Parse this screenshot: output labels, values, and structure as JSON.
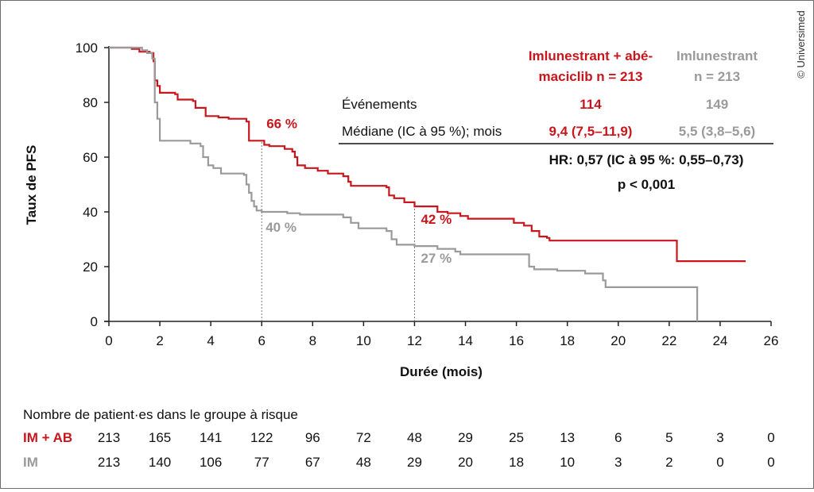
{
  "copyright": "© Universimed",
  "colors": {
    "red": "#c8161d",
    "gray": "#9a9a9a",
    "axis": "#222222"
  },
  "chart_data": {
    "type": "line",
    "subtype": "kaplan-meier step",
    "xlabel": "Durée (mois)",
    "ylabel": "Taux de PFS",
    "xlim": [
      0,
      26
    ],
    "ylim": [
      0,
      100
    ],
    "x_ticks": [
      0,
      2,
      4,
      6,
      8,
      10,
      12,
      14,
      16,
      18,
      20,
      22,
      24,
      26
    ],
    "y_ticks": [
      0,
      20,
      40,
      60,
      80,
      100
    ],
    "grid": false,
    "series": [
      {
        "key": "combo",
        "color": "#c8161d",
        "points": [
          [
            0,
            100
          ],
          [
            0.9,
            99.5
          ],
          [
            1.2,
            98.5
          ],
          [
            1.6,
            98
          ],
          [
            1.75,
            95
          ],
          [
            1.8,
            88
          ],
          [
            1.9,
            86
          ],
          [
            2.0,
            83.5
          ],
          [
            2.6,
            83
          ],
          [
            2.7,
            81
          ],
          [
            3.3,
            80.5
          ],
          [
            3.4,
            78
          ],
          [
            3.8,
            75
          ],
          [
            4.3,
            74.5
          ],
          [
            4.7,
            74
          ],
          [
            5.4,
            73
          ],
          [
            5.5,
            66
          ],
          [
            6.0,
            66
          ],
          [
            6.1,
            64.5
          ],
          [
            6.3,
            64
          ],
          [
            6.9,
            63
          ],
          [
            7.2,
            62
          ],
          [
            7.3,
            60
          ],
          [
            7.4,
            57
          ],
          [
            7.7,
            56
          ],
          [
            8.0,
            56
          ],
          [
            8.2,
            55
          ],
          [
            8.6,
            54
          ],
          [
            9.2,
            53
          ],
          [
            9.4,
            51
          ],
          [
            9.5,
            49.5
          ],
          [
            10.5,
            49.5
          ],
          [
            10.9,
            49
          ],
          [
            11.0,
            46
          ],
          [
            11.2,
            45
          ],
          [
            11.6,
            43.5
          ],
          [
            12.0,
            42
          ],
          [
            12.9,
            40
          ],
          [
            13.3,
            39.5
          ],
          [
            13.8,
            38.5
          ],
          [
            14.1,
            37.5
          ],
          [
            15.2,
            37.5
          ],
          [
            15.9,
            36
          ],
          [
            16.3,
            35
          ],
          [
            16.6,
            33
          ],
          [
            16.9,
            31
          ],
          [
            17.2,
            30.5
          ],
          [
            17.3,
            29.5
          ],
          [
            22.3,
            29.5
          ],
          [
            22.3,
            22
          ],
          [
            25.0,
            22
          ]
        ]
      },
      {
        "key": "mono",
        "color": "#9a9a9a",
        "points": [
          [
            0,
            100
          ],
          [
            1.1,
            100
          ],
          [
            1.3,
            99
          ],
          [
            1.5,
            98
          ],
          [
            1.7,
            96
          ],
          [
            1.8,
            80
          ],
          [
            1.9,
            74
          ],
          [
            2.0,
            66
          ],
          [
            2.9,
            66
          ],
          [
            3.2,
            65
          ],
          [
            3.6,
            64
          ],
          [
            3.7,
            60
          ],
          [
            3.9,
            57
          ],
          [
            4.1,
            56
          ],
          [
            4.4,
            54
          ],
          [
            5.0,
            54
          ],
          [
            5.3,
            53.5
          ],
          [
            5.4,
            50
          ],
          [
            5.5,
            47
          ],
          [
            5.6,
            44
          ],
          [
            5.7,
            42
          ],
          [
            5.8,
            40.5
          ],
          [
            6.0,
            40
          ],
          [
            7.0,
            39.5
          ],
          [
            7.5,
            39
          ],
          [
            9.0,
            39
          ],
          [
            9.2,
            38
          ],
          [
            9.5,
            36
          ],
          [
            9.8,
            34
          ],
          [
            10.5,
            34
          ],
          [
            10.9,
            33
          ],
          [
            11.1,
            30
          ],
          [
            11.3,
            28
          ],
          [
            12.0,
            27.5
          ],
          [
            12.9,
            26.5
          ],
          [
            13.6,
            25.5
          ],
          [
            13.8,
            24.5
          ],
          [
            16.4,
            24.5
          ],
          [
            16.5,
            20
          ],
          [
            16.7,
            19
          ],
          [
            17.5,
            19
          ],
          [
            17.6,
            18.5
          ],
          [
            18.6,
            18.5
          ],
          [
            18.7,
            17.5
          ],
          [
            19.3,
            17.5
          ],
          [
            19.4,
            15
          ],
          [
            19.5,
            12.5
          ],
          [
            23.1,
            12.5
          ],
          [
            23.1,
            0
          ]
        ]
      }
    ],
    "annotations": [
      {
        "text": "66 %",
        "x": 6,
        "y": 66,
        "color": "#c8161d"
      },
      {
        "text": "40 %",
        "x": 6,
        "y": 40,
        "color": "#9a9a9a"
      },
      {
        "text": "42 %",
        "x": 12,
        "y": 42,
        "color": "#c8161d"
      },
      {
        "text": "27 %",
        "x": 12,
        "y": 27,
        "color": "#9a9a9a"
      }
    ],
    "reference_lines": [
      {
        "x": 6,
        "y_top": 66
      },
      {
        "x": 12,
        "y_top": 42
      }
    ],
    "legend_table": {
      "combo_header_1": "Imlunestrant + abé-",
      "combo_header_2": "maciclib n = 213",
      "mono_header_1": "Imlunestrant",
      "mono_header_2": "n = 213",
      "row_events_label": "Événements",
      "events_combo": "114",
      "events_mono": "149",
      "row_median_label": "Médiane (IC à 95 %); mois",
      "median_combo": "9,4 (7,5–11,9)",
      "median_mono": "5,5 (3,8–5,6)",
      "hr": "HR: 0,57 (IC à 95 %: 0,55–0,73)",
      "p": "p < 0,001"
    },
    "risk_table": {
      "title": "Nombre de patient·es dans le groupe à risque",
      "rows": [
        {
          "label": "IM + AB",
          "color": "#c8161d",
          "values": [
            "213",
            "165",
            "141",
            "122",
            "96",
            "72",
            "48",
            "29",
            "25",
            "13",
            "6",
            "5",
            "3",
            "0"
          ]
        },
        {
          "label": "IM",
          "color": "#9a9a9a",
          "values": [
            "213",
            "140",
            "106",
            "77",
            "67",
            "48",
            "29",
            "20",
            "18",
            "10",
            "3",
            "2",
            "0",
            "0"
          ]
        }
      ]
    }
  }
}
